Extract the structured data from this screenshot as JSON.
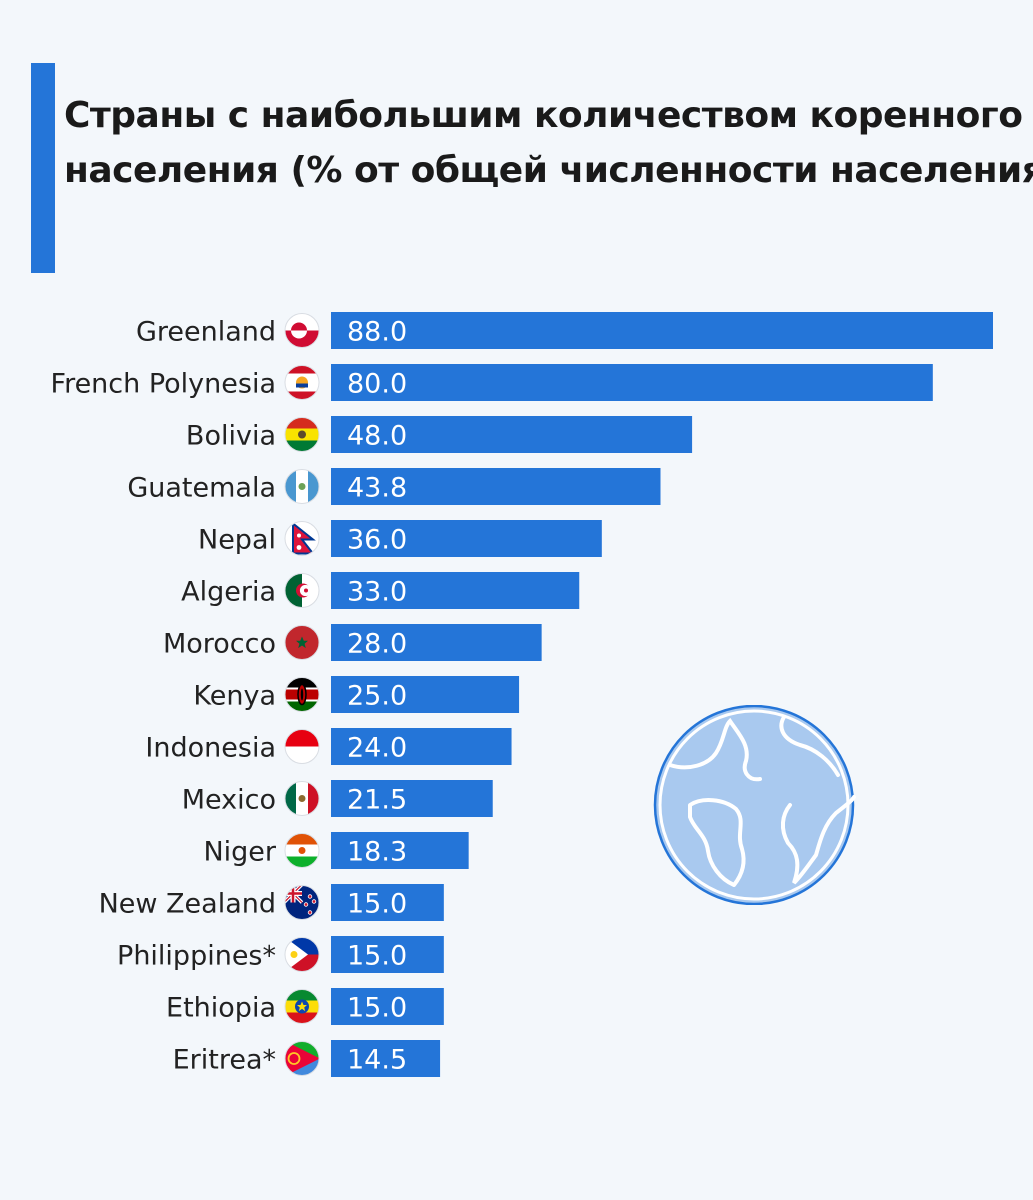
{
  "colors": {
    "bar": "#2475d8",
    "accent": "#2475d8",
    "background": "#f3f7fb",
    "label": "#222222",
    "value": "#ffffff"
  },
  "chart_data": {
    "type": "bar",
    "orientation": "horizontal",
    "title_lines": [
      "Страны с наибольшим количеством коренного",
      "населения (% от общей численности населения)"
    ],
    "categories": [
      "Greenland",
      "French Polynesia",
      "Bolivia",
      "Guatemala",
      "Nepal",
      "Algeria",
      "Morocco",
      "Kenya",
      "Indonesia",
      "Mexico",
      "Niger",
      "New Zealand",
      "Philippines*",
      "Ethiopia",
      "Eritrea*"
    ],
    "values": [
      88.0,
      80.0,
      48.0,
      43.8,
      36.0,
      33.0,
      28.0,
      25.0,
      24.0,
      21.5,
      18.3,
      15.0,
      15.0,
      15.0,
      14.5
    ],
    "value_labels": [
      "88.0",
      "80.0",
      "48.0",
      "43.8",
      "36.0",
      "33.0",
      "28.0",
      "25.0",
      "24.0",
      "21.5",
      "18.3",
      "15.0",
      "15.0",
      "15.0",
      "14.5"
    ],
    "flags": [
      "greenland-flag-icon",
      "french-polynesia-flag-icon",
      "bolivia-flag-icon",
      "guatemala-flag-icon",
      "nepal-flag-icon",
      "algeria-flag-icon",
      "morocco-flag-icon",
      "kenya-flag-icon",
      "indonesia-flag-icon",
      "mexico-flag-icon",
      "niger-flag-icon",
      "new-zealand-flag-icon",
      "philippines-flag-icon",
      "ethiopia-flag-icon",
      "eritrea-flag-icon"
    ],
    "xlim": [
      0,
      88
    ],
    "grid": false,
    "legend": "none"
  },
  "decoration": {
    "icon": "globe-icon"
  }
}
